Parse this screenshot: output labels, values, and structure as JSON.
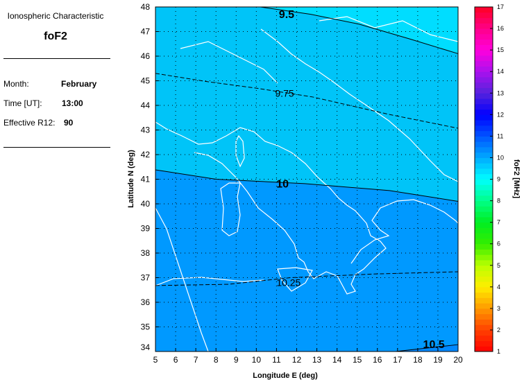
{
  "side": {
    "title": "Ionospheric Characteristic",
    "parameter": "foF2",
    "month_label": "Month:",
    "month_value": "February",
    "time_label": "Time [UT]:",
    "time_value": "13:00",
    "r12_label": "Effective R12:",
    "r12_value": "90"
  },
  "chart_data": {
    "type": "contour map",
    "xlabel": "Longitude E (deg)",
    "ylabel": "Latitude N (deg)",
    "xlim": [
      5,
      20
    ],
    "ylim": [
      34,
      48
    ],
    "xticks": [
      5,
      6,
      7,
      8,
      9,
      10,
      11,
      12,
      13,
      14,
      15,
      16,
      17,
      18,
      19,
      20
    ],
    "yticks": [
      34,
      35,
      36,
      37,
      38,
      39,
      40,
      41,
      42,
      43,
      44,
      45,
      46,
      47,
      48
    ],
    "grid": true,
    "contours": [
      {
        "level": "9.5",
        "style": "solid",
        "points": [
          [
            10.2,
            48
          ],
          [
            12.7,
            47.7
          ],
          [
            15.1,
            47.3
          ],
          [
            17.6,
            46.7
          ],
          [
            20,
            46.1
          ]
        ],
        "label_at": [
          11.5,
          47.8
        ]
      },
      {
        "level": "9.75",
        "style": "dashed",
        "points": [
          [
            5,
            45.3
          ],
          [
            7.6,
            44.96
          ],
          [
            10.0,
            44.7
          ],
          [
            12.8,
            44.34
          ],
          [
            16.6,
            43.63
          ],
          [
            20,
            43.07
          ]
        ],
        "label_at": [
          11.4,
          44.5
        ]
      },
      {
        "level": "10",
        "style": "solid",
        "points": [
          [
            5,
            41.38
          ],
          [
            8.0,
            41.0
          ],
          [
            12.4,
            40.82
          ],
          [
            16.6,
            40.54
          ],
          [
            20,
            40.1
          ]
        ],
        "label_at": [
          11.3,
          40.8
        ]
      },
      {
        "level": "10.25",
        "style": "dashed",
        "points": [
          [
            5,
            36.68
          ],
          [
            8.6,
            36.73
          ],
          [
            11.7,
            37.0
          ],
          [
            15.9,
            37.15
          ],
          [
            20,
            37.24
          ]
        ],
        "label_at": [
          11.6,
          36.8
        ]
      },
      {
        "level": "10.5",
        "style": "solid",
        "points": [
          [
            16.9,
            34
          ],
          [
            20,
            34.28
          ]
        ],
        "label_at": [
          18.8,
          34.0
        ]
      }
    ],
    "fill_colors": {
      "above_9.5": "#00DDFF",
      "9.5_to_10": "#00C4F8",
      "10_to_10.5": "#0099FF",
      "above_10.5": "#0088FF"
    },
    "colorbar": {
      "label": "foF2 [MHz]",
      "range": [
        1,
        17
      ],
      "ticks": [
        "1",
        "2",
        "3",
        "4",
        "5",
        "6",
        "7",
        "8",
        "9",
        "10",
        "11",
        "12",
        "13",
        "14",
        "15",
        "16",
        "17"
      ],
      "stops": [
        "#FF0000",
        "#FF4000",
        "#FF9900",
        "#FFEE00",
        "#BBFF00",
        "#33EE00",
        "#00EE22",
        "#00FF88",
        "#00FFFF",
        "#00AAFF",
        "#0055FF",
        "#0000FF",
        "#5522DD",
        "#AA11EE",
        "#FF00DD",
        "#FF0088",
        "#FF0022"
      ]
    }
  }
}
